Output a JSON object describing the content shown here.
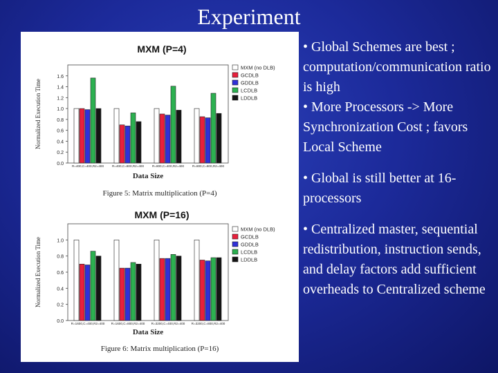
{
  "slide": {
    "title": "Experiment"
  },
  "bullets": [
    "• Global Schemes are best ; computation/communication ratio is high",
    "• More Processors -> More Synchronization Cost ; favors Local Scheme",
    "• Global is still better at 16-processors",
    "• Centralized master, sequential redistribution, instruction sends, and delay factors add sufficient overheads to Centralized scheme"
  ],
  "colors": {
    "MXM (no DLB)": "#ffffff",
    "GCDLB": "#e8203c",
    "GDDLB": "#3030d8",
    "LCDLB": "#2cb050",
    "LDDLB": "#141414"
  },
  "chart_data": [
    {
      "type": "bar",
      "title": "MXM (P=4)",
      "xlabel": "Data Size",
      "ylabel": "Normalized Execution Time",
      "caption": "Figure 5: Matrix multiplication (P=4)",
      "ylim": [
        0,
        1.8
      ],
      "yticks": [
        "0.0",
        "0.2",
        "0.4",
        "0.6",
        "0.8",
        "1.0",
        "1.2",
        "1.4",
        "1.6"
      ],
      "legend": "top-right",
      "categories": [
        "R=400,C=400,R2=400",
        "R=400,C=800,R2=400",
        "R=800,C=400,R2=400",
        "R=800,C=800,R2=400"
      ],
      "series": [
        {
          "name": "MXM (no DLB)",
          "values": [
            1.0,
            1.0,
            1.0,
            1.0
          ]
        },
        {
          "name": "GCDLB",
          "values": [
            1.0,
            0.7,
            0.9,
            0.85
          ]
        },
        {
          "name": "GDDLB",
          "values": [
            0.98,
            0.68,
            0.88,
            0.83
          ]
        },
        {
          "name": "LCDLB",
          "values": [
            1.56,
            0.92,
            1.41,
            1.28
          ]
        },
        {
          "name": "LDDLB",
          "values": [
            1.0,
            0.76,
            0.97,
            0.91
          ]
        }
      ]
    },
    {
      "type": "bar",
      "title": "MXM (P=16)",
      "xlabel": "Data Size",
      "ylabel": "Normalized Execution Time",
      "caption": "Figure 6: Matrix multiplication (P=16)",
      "ylim": [
        0,
        1.2
      ],
      "yticks": [
        "0.0",
        "0.2",
        "0.4",
        "0.6",
        "0.8",
        "1.0"
      ],
      "legend": "top-right",
      "categories": [
        "R=1600,C=400,R2=400",
        "R=1600,C=800,R2=400",
        "R=3200,C=400,R2=400",
        "R=3200,C=800,R2=400"
      ],
      "series": [
        {
          "name": "MXM (no DLB)",
          "values": [
            1.0,
            1.0,
            1.0,
            1.0
          ]
        },
        {
          "name": "GCDLB",
          "values": [
            0.7,
            0.65,
            0.77,
            0.75
          ]
        },
        {
          "name": "GDDLB",
          "values": [
            0.69,
            0.65,
            0.77,
            0.74
          ]
        },
        {
          "name": "LCDLB",
          "values": [
            0.86,
            0.72,
            0.82,
            0.78
          ]
        },
        {
          "name": "LDDLB",
          "values": [
            0.8,
            0.7,
            0.8,
            0.78
          ]
        }
      ]
    }
  ]
}
